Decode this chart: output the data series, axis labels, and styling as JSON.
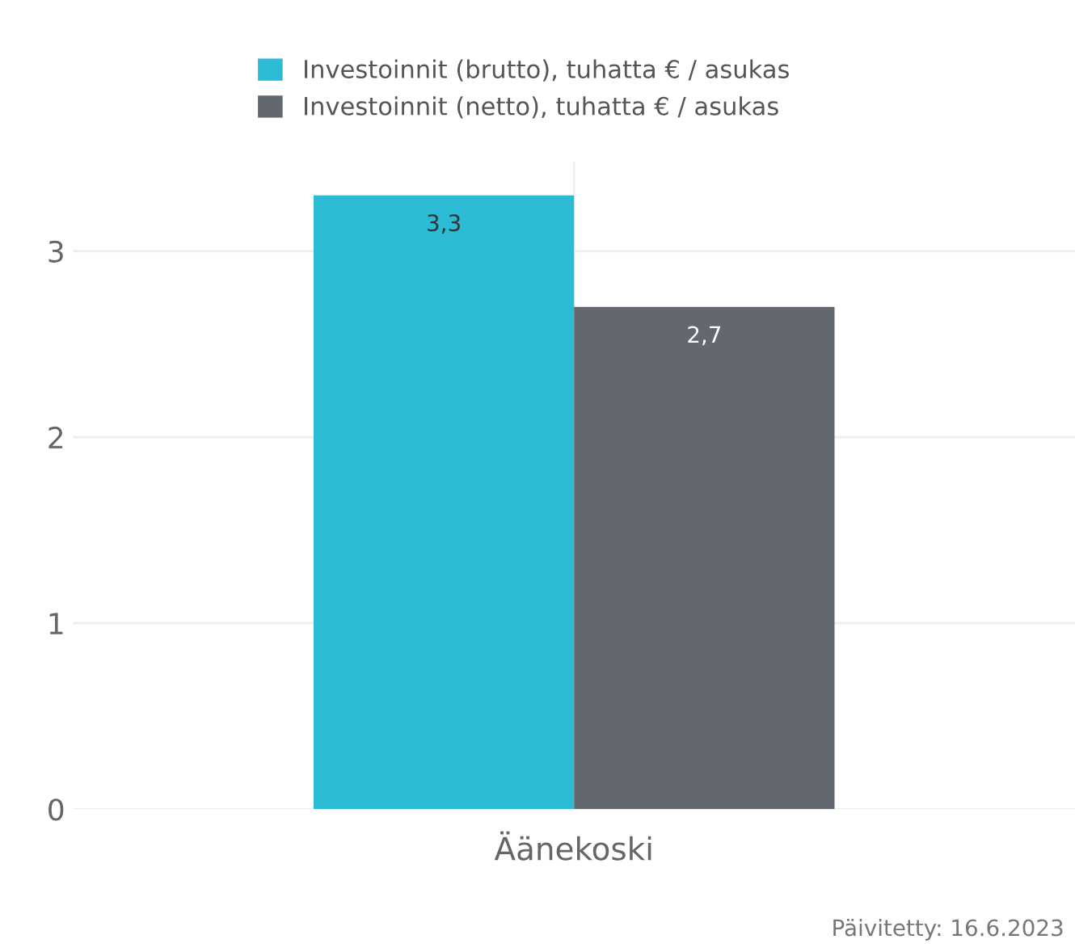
{
  "chart_data": {
    "type": "bar",
    "categories": [
      "Äänekoski"
    ],
    "series": [
      {
        "name": "Investoinnit (brutto), tuhatta € / asukas",
        "color": "#2bbbd5",
        "values": [
          3.3
        ],
        "value_labels": [
          "3,3"
        ]
      },
      {
        "name": "Investoinnit (netto), tuhatta € / asukas",
        "color": "#636870",
        "values": [
          2.7
        ],
        "value_labels": [
          "2,7"
        ]
      }
    ],
    "ylim": [
      0,
      3.48
    ],
    "yticks": [
      0,
      1,
      2,
      3
    ],
    "grid": true,
    "legend": "top",
    "annotations": [
      "Päivitetty: 16.6.2023"
    ]
  }
}
